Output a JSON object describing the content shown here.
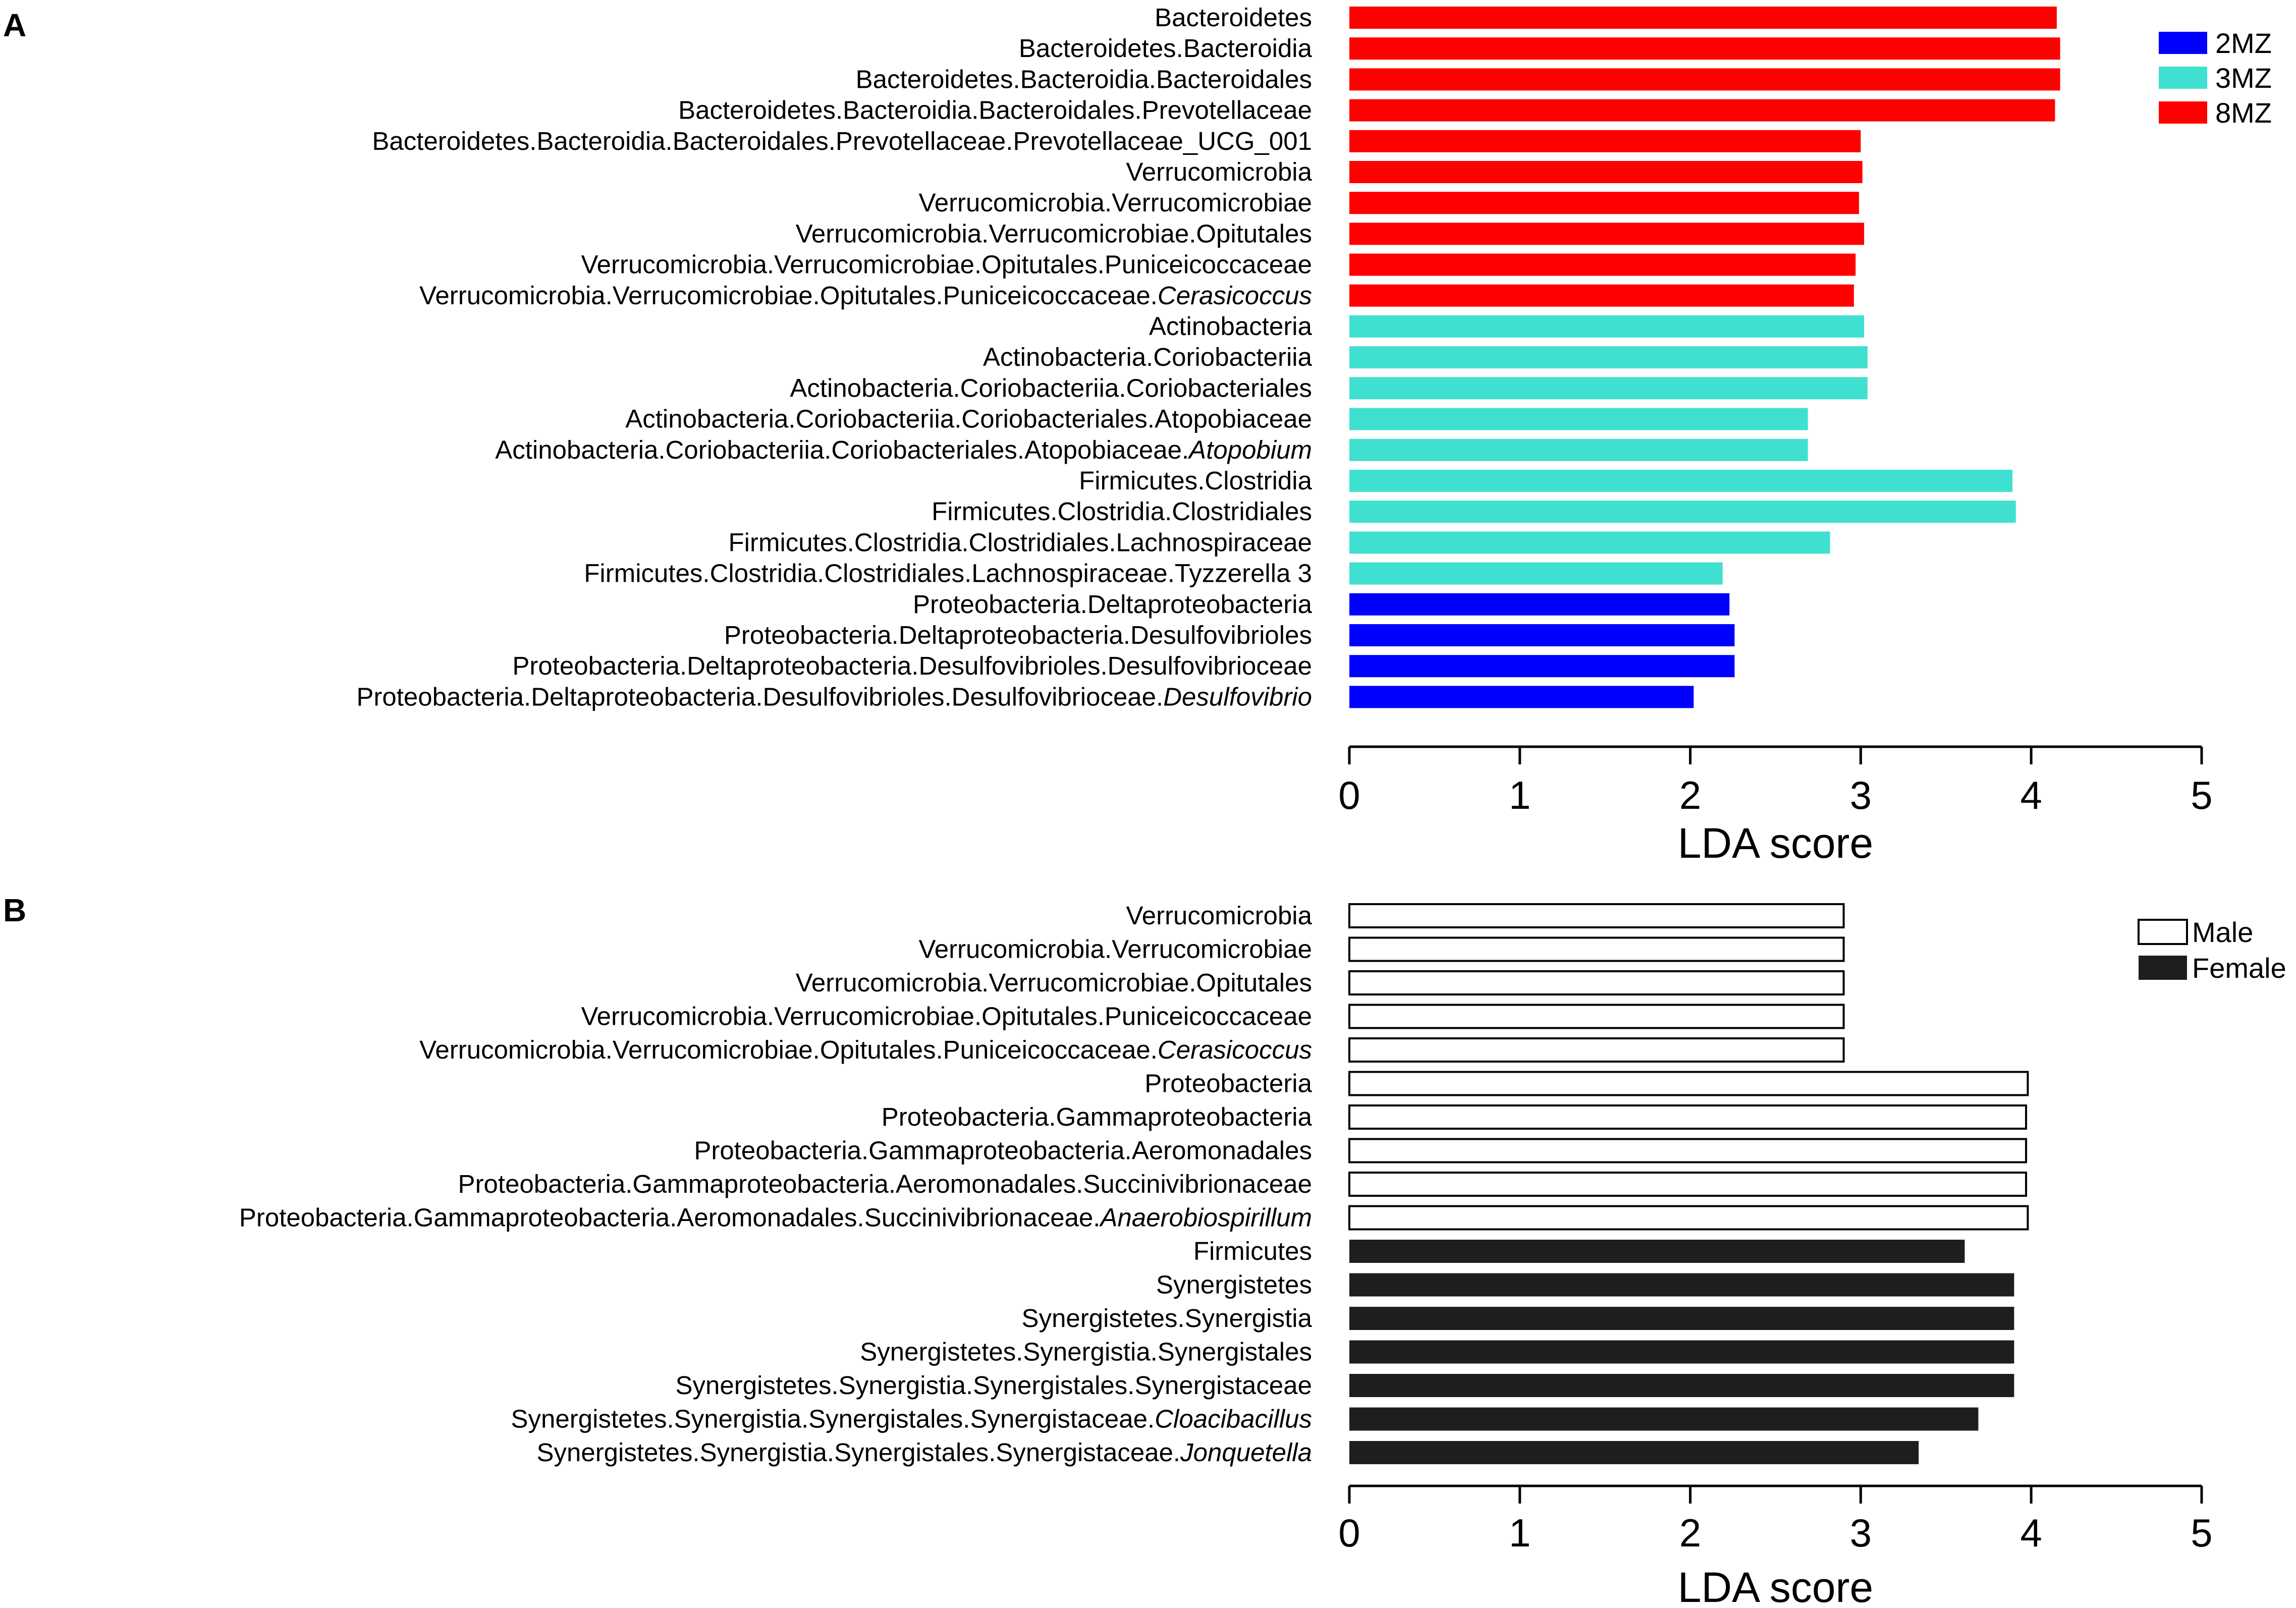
{
  "chart_data": [
    {
      "type": "bar",
      "orientation": "horizontal",
      "panel_label": "A",
      "xlabel": "LDA score",
      "xlim": [
        0,
        5
      ],
      "xticks": [
        "0",
        "1",
        "2",
        "3",
        "4",
        "5"
      ],
      "legend": [
        {
          "label": "2MZ",
          "color": "#0000ff",
          "fill": true
        },
        {
          "label": "3MZ",
          "color": "#40e0d0",
          "fill": true
        },
        {
          "label": "8MZ",
          "color": "#ff0000",
          "fill": true
        }
      ],
      "bars": [
        {
          "label": "Bacteroidetes",
          "italic": "",
          "group": "8MZ",
          "value": 4.15
        },
        {
          "label": "Bacteroidetes.Bacteroidia",
          "italic": "",
          "group": "8MZ",
          "value": 4.17
        },
        {
          "label": "Bacteroidetes.Bacteroidia.Bacteroidales",
          "italic": "",
          "group": "8MZ",
          "value": 4.17
        },
        {
          "label": "Bacteroidetes.Bacteroidia.Bacteroidales.Prevotellaceae",
          "italic": "",
          "group": "8MZ",
          "value": 4.14
        },
        {
          "label": "Bacteroidetes.Bacteroidia.Bacteroidales.Prevotellaceae.Prevotellaceae_UCG_001",
          "italic": "",
          "group": "8MZ",
          "value": 3.0
        },
        {
          "label": "Verrucomicrobia",
          "italic": "",
          "group": "8MZ",
          "value": 3.01
        },
        {
          "label": "Verrucomicrobia.Verrucomicrobiae",
          "italic": "",
          "group": "8MZ",
          "value": 2.99
        },
        {
          "label": "Verrucomicrobia.Verrucomicrobiae.Opitutales",
          "italic": "",
          "group": "8MZ",
          "value": 3.02
        },
        {
          "label": "Verrucomicrobia.Verrucomicrobiae.Opitutales.Puniceicoccaceae",
          "italic": "",
          "group": "8MZ",
          "value": 2.97
        },
        {
          "label": "Verrucomicrobia.Verrucomicrobiae.Opitutales.Puniceicoccaceae.",
          "italic": "Cerasicoccus",
          "group": "8MZ",
          "value": 2.96
        },
        {
          "label": "Actinobacteria",
          "italic": "",
          "group": "3MZ",
          "value": 3.02
        },
        {
          "label": "Actinobacteria.Coriobacteriia",
          "italic": "",
          "group": "3MZ",
          "value": 3.04
        },
        {
          "label": "Actinobacteria.Coriobacteriia.Coriobacteriales",
          "italic": "",
          "group": "3MZ",
          "value": 3.04
        },
        {
          "label": "Actinobacteria.Coriobacteriia.Coriobacteriales.Atopobiaceae",
          "italic": "",
          "group": "3MZ",
          "value": 2.69
        },
        {
          "label": "Actinobacteria.Coriobacteriia.Coriobacteriales.Atopobiaceae.",
          "italic": "Atopobium",
          "group": "3MZ",
          "value": 2.69
        },
        {
          "label": "Firmicutes.Clostridia",
          "italic": "",
          "group": "3MZ",
          "value": 3.89
        },
        {
          "label": "Firmicutes.Clostridia.Clostridiales",
          "italic": "",
          "group": "3MZ",
          "value": 3.91
        },
        {
          "label": "Firmicutes.Clostridia.Clostridiales.Lachnospiraceae",
          "italic": "",
          "group": "3MZ",
          "value": 2.82
        },
        {
          "label": "Firmicutes.Clostridia.Clostridiales.Lachnospiraceae.Tyzzerella 3",
          "italic": "",
          "group": "3MZ",
          "value": 2.19
        },
        {
          "label": "Proteobacteria.Deltaproteobacteria",
          "italic": "",
          "group": "2MZ",
          "value": 2.23
        },
        {
          "label": "Proteobacteria.Deltaproteobacteria.Desulfovibrioles",
          "italic": "",
          "group": "2MZ",
          "value": 2.26
        },
        {
          "label": "Proteobacteria.Deltaproteobacteria.Desulfovibrioles.Desulfovibrioceae",
          "italic": "",
          "group": "2MZ",
          "value": 2.26
        },
        {
          "label": "Proteobacteria.Deltaproteobacteria.Desulfovibrioles.Desulfovibrioceae.",
          "italic": "Desulfovibrio",
          "group": "2MZ",
          "value": 2.02
        }
      ]
    },
    {
      "type": "bar",
      "orientation": "horizontal",
      "panel_label": "B",
      "xlabel": "LDA score",
      "xlim": [
        0,
        5
      ],
      "xticks": [
        "0",
        "1",
        "2",
        "3",
        "4",
        "5"
      ],
      "legend": [
        {
          "label": "Male",
          "color": "#ffffff",
          "fill": false
        },
        {
          "label": "Female",
          "color": "#1e1e1e",
          "fill": true
        }
      ],
      "bars": [
        {
          "label": "Verrucomicrobia",
          "italic": "",
          "group": "Male",
          "value": 2.9
        },
        {
          "label": "Verrucomicrobia.Verrucomicrobiae",
          "italic": "",
          "group": "Male",
          "value": 2.9
        },
        {
          "label": "Verrucomicrobia.Verrucomicrobiae.Opitutales",
          "italic": "",
          "group": "Male",
          "value": 2.9
        },
        {
          "label": "Verrucomicrobia.Verrucomicrobiae.Opitutales.Puniceicoccaceae",
          "italic": "",
          "group": "Male",
          "value": 2.9
        },
        {
          "label": "Verrucomicrobia.Verrucomicrobiae.Opitutales.Puniceicoccaceae.",
          "italic": "Cerasicoccus",
          "group": "Male",
          "value": 2.9
        },
        {
          "label": "Proteobacteria",
          "italic": "",
          "group": "Male",
          "value": 3.98
        },
        {
          "label": "Proteobacteria.Gammaproteobacteria",
          "italic": "",
          "group": "Male",
          "value": 3.97
        },
        {
          "label": "Proteobacteria.Gammaproteobacteria.Aeromonadales",
          "italic": "",
          "group": "Male",
          "value": 3.97
        },
        {
          "label": "Proteobacteria.Gammaproteobacteria.Aeromonadales.Succinivibrionaceae",
          "italic": "",
          "group": "Male",
          "value": 3.97
        },
        {
          "label": "Proteobacteria.Gammaproteobacteria.Aeromonadales.Succinivibrionaceae.",
          "italic": "Anaerobiospirillum",
          "group": "Male",
          "value": 3.98
        },
        {
          "label": "Firmicutes",
          "italic": "",
          "group": "Female",
          "value": 3.61
        },
        {
          "label": "Synergistetes",
          "italic": "",
          "group": "Female",
          "value": 3.9
        },
        {
          "label": "Synergistetes.Synergistia",
          "italic": "",
          "group": "Female",
          "value": 3.9
        },
        {
          "label": "Synergistetes.Synergistia.Synergistales",
          "italic": "",
          "group": "Female",
          "value": 3.9
        },
        {
          "label": "Synergistetes.Synergistia.Synergistales.Synergistaceae",
          "italic": "",
          "group": "Female",
          "value": 3.9
        },
        {
          "label": "Synergistetes.Synergistia.Synergistales.Synergistaceae.",
          "italic": "Cloacibacillus",
          "group": "Female",
          "value": 3.69
        },
        {
          "label": "Synergistetes.Synergistia.Synergistales.Synergistaceae.",
          "italic": "Jonquetella",
          "group": "Female",
          "value": 3.34
        }
      ]
    }
  ]
}
